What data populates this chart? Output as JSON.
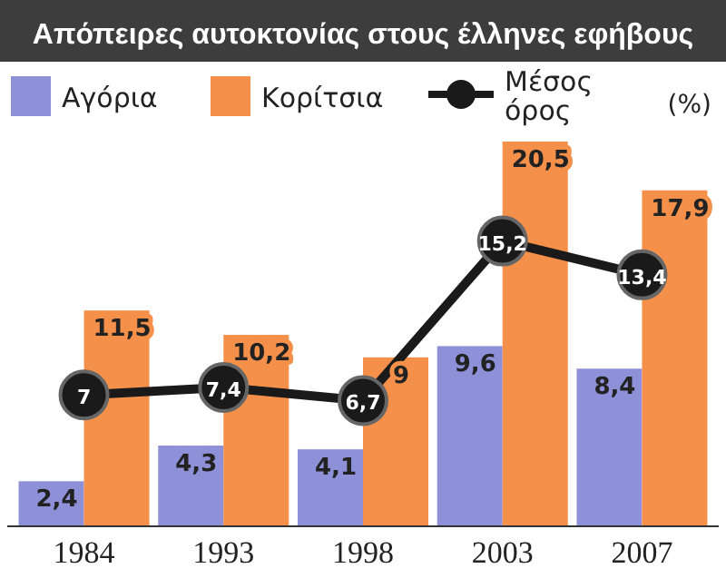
{
  "chart_data": {
    "type": "bar",
    "title": "Απόπειρες αυτοκτονίας στους έλληνες εφήβους",
    "ylabel": "(%)",
    "categories": [
      "1984",
      "1993",
      "1998",
      "2003",
      "2007"
    ],
    "legend": "top",
    "series": [
      {
        "name": "Αγόρια",
        "color": "#8e90d8",
        "values": [
          2.4,
          4.3,
          4.1,
          9.6,
          8.4
        ],
        "value_labels": [
          "2,4",
          "4,3",
          "4,1",
          "9,6",
          "8,4"
        ]
      },
      {
        "name": "Κορίτσια",
        "color": "#f4904a",
        "values": [
          11.5,
          10.2,
          9,
          20.5,
          17.9
        ],
        "value_labels": [
          "11,5",
          "10,2",
          "9",
          "20,5",
          "17,9"
        ]
      },
      {
        "name": "Μέσος όρος",
        "type": "line",
        "color": "#1a1a1a",
        "marker": "circle",
        "values": [
          7,
          7.4,
          6.7,
          15.2,
          13.4
        ],
        "value_labels": [
          "7",
          "7,4",
          "6,7",
          "15,2",
          "13,4"
        ]
      }
    ]
  }
}
